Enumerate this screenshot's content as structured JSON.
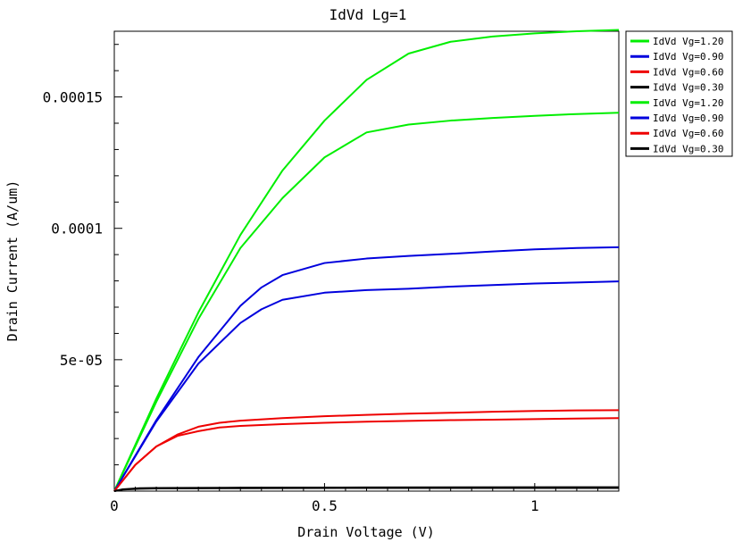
{
  "chart_data": {
    "type": "line",
    "title": "IdVd Lg=1",
    "xlabel": "Drain Voltage (V)",
    "ylabel": "Drain Current (A/um)",
    "xlim": [
      0,
      1.2
    ],
    "ylim": [
      0,
      0.000175
    ],
    "x_ticks": [
      {
        "value": 0,
        "label": "0"
      },
      {
        "value": 0.5,
        "label": "0.5"
      },
      {
        "value": 1,
        "label": "1"
      }
    ],
    "y_ticks": [
      {
        "value": 5e-05,
        "label": "5e-05"
      },
      {
        "value": 0.0001,
        "label": "0.0001"
      },
      {
        "value": 0.00015,
        "label": "0.00015"
      }
    ],
    "grid": false,
    "legend_position": "outside-top-right",
    "series": [
      {
        "name": "IdVd Vg=1.20",
        "color": "#00ee00",
        "points": [
          [
            0,
            0
          ],
          [
            0.1,
            3.52e-05
          ],
          [
            0.2,
            6.8e-05
          ],
          [
            0.3,
            9.75e-05
          ],
          [
            0.4,
            0.000122
          ],
          [
            0.5,
            0.000141
          ],
          [
            0.6,
            0.0001565
          ],
          [
            0.7,
            0.0001665
          ],
          [
            0.8,
            0.000171
          ],
          [
            0.9,
            0.000173
          ],
          [
            1.0,
            0.0001742
          ],
          [
            1.1,
            0.000175
          ],
          [
            1.2,
            0.0001755
          ]
        ]
      },
      {
        "name": "IdVd Vg=0.90",
        "color": "#0000dd",
        "points": [
          [
            0,
            0
          ],
          [
            0.1,
            2.7e-05
          ],
          [
            0.2,
            5.1e-05
          ],
          [
            0.3,
            7.05e-05
          ],
          [
            0.35,
            7.75e-05
          ],
          [
            0.4,
            8.22e-05
          ],
          [
            0.5,
            8.68e-05
          ],
          [
            0.6,
            8.85e-05
          ],
          [
            0.7,
            8.95e-05
          ],
          [
            0.8,
            9.03e-05
          ],
          [
            0.9,
            9.12e-05
          ],
          [
            1.0,
            9.2e-05
          ],
          [
            1.1,
            9.25e-05
          ],
          [
            1.2,
            9.28e-05
          ]
        ]
      },
      {
        "name": "IdVd Vg=0.60",
        "color": "#ee0000",
        "points": [
          [
            0,
            0
          ],
          [
            0.05,
            1e-05
          ],
          [
            0.1,
            1.7e-05
          ],
          [
            0.15,
            2.15e-05
          ],
          [
            0.2,
            2.45e-05
          ],
          [
            0.25,
            2.6e-05
          ],
          [
            0.3,
            2.68e-05
          ],
          [
            0.4,
            2.78e-05
          ],
          [
            0.5,
            2.85e-05
          ],
          [
            0.6,
            2.9e-05
          ],
          [
            0.7,
            2.95e-05
          ],
          [
            0.8,
            2.98e-05
          ],
          [
            0.9,
            3.02e-05
          ],
          [
            1.0,
            3.05e-05
          ],
          [
            1.1,
            3.07e-05
          ],
          [
            1.2,
            3.08e-05
          ]
        ]
      },
      {
        "name": "IdVd Vg=0.30",
        "color": "#000000",
        "points": [
          [
            0,
            0
          ],
          [
            0.02,
            7e-07
          ],
          [
            0.06,
            1.1e-06
          ],
          [
            0.1,
            1.2e-06
          ],
          [
            0.3,
            1.3e-06
          ],
          [
            0.6,
            1.4e-06
          ],
          [
            1.2,
            1.5e-06
          ]
        ]
      },
      {
        "name": "IdVd Vg=1.20",
        "color": "#00ee00",
        "points": [
          [
            0,
            0
          ],
          [
            0.1,
            3.4e-05
          ],
          [
            0.2,
            6.55e-05
          ],
          [
            0.3,
            9.25e-05
          ],
          [
            0.4,
            0.0001115
          ],
          [
            0.5,
            0.000127
          ],
          [
            0.6,
            0.0001365
          ],
          [
            0.7,
            0.0001395
          ],
          [
            0.8,
            0.000141
          ],
          [
            0.9,
            0.000142
          ],
          [
            1.0,
            0.0001428
          ],
          [
            1.1,
            0.0001435
          ],
          [
            1.2,
            0.000144
          ]
        ]
      },
      {
        "name": "IdVd Vg=0.90",
        "color": "#0000dd",
        "points": [
          [
            0,
            0
          ],
          [
            0.1,
            2.65e-05
          ],
          [
            0.2,
            4.85e-05
          ],
          [
            0.3,
            6.4e-05
          ],
          [
            0.35,
            6.92e-05
          ],
          [
            0.4,
            7.28e-05
          ],
          [
            0.5,
            7.55e-05
          ],
          [
            0.6,
            7.65e-05
          ],
          [
            0.7,
            7.7e-05
          ],
          [
            0.8,
            7.78e-05
          ],
          [
            0.9,
            7.84e-05
          ],
          [
            1.0,
            7.9e-05
          ],
          [
            1.1,
            7.94e-05
          ],
          [
            1.2,
            7.98e-05
          ]
        ]
      },
      {
        "name": "IdVd Vg=0.60",
        "color": "#ee0000",
        "points": [
          [
            0,
            0
          ],
          [
            0.05,
            1e-05
          ],
          [
            0.1,
            1.7e-05
          ],
          [
            0.15,
            2.1e-05
          ],
          [
            0.2,
            2.28e-05
          ],
          [
            0.25,
            2.42e-05
          ],
          [
            0.3,
            2.48e-05
          ],
          [
            0.4,
            2.55e-05
          ],
          [
            0.5,
            2.6e-05
          ],
          [
            0.6,
            2.64e-05
          ],
          [
            0.7,
            2.67e-05
          ],
          [
            0.8,
            2.7e-05
          ],
          [
            0.9,
            2.72e-05
          ],
          [
            1.0,
            2.74e-05
          ],
          [
            1.1,
            2.76e-05
          ],
          [
            1.2,
            2.78e-05
          ]
        ]
      },
      {
        "name": "IdVd Vg=0.30",
        "color": "#000000",
        "points": [
          [
            0,
            0
          ],
          [
            0.02,
            6e-07
          ],
          [
            0.06,
            9e-07
          ],
          [
            0.1,
            1e-06
          ],
          [
            0.3,
            1.1e-06
          ],
          [
            0.6,
            1.2e-06
          ],
          [
            1.2,
            1.2e-06
          ]
        ]
      }
    ]
  }
}
